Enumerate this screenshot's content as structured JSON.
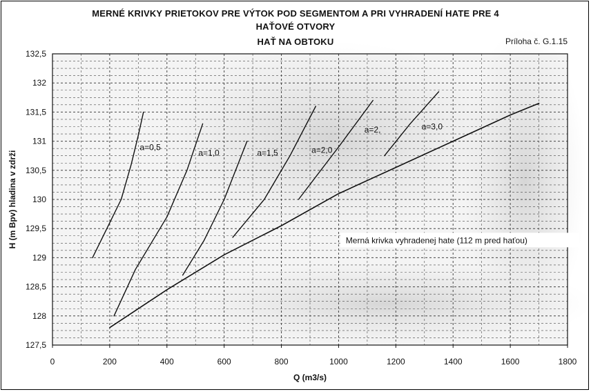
{
  "header": {
    "title": "MERNÉ KRIVKY PRIETOKOV PRE VÝTOK POD  SEGMENTOM A PRI VYHRADENÍ HATE PRE 4 HAŤOVÉ OTVORY",
    "subtitle": "HAŤ NA OBTOKU",
    "reference": "Príloha č. G.1.15"
  },
  "chart_data": {
    "type": "line",
    "title": "MERNÉ KRIVKY PRIETOKOV PRE VÝTOK POD  SEGMENTOM A PRI VYHRADENÍ HATE PRE 4 HAŤOVÉ OTVORY",
    "subtitle": "HAŤ NA OBTOKU",
    "xlabel": "Q (m3/s)",
    "ylabel": "H (m Bpv) hladina v zdrži",
    "xlim": [
      0,
      1800
    ],
    "ylim": [
      127.5,
      132.5
    ],
    "x_ticks": [
      "0",
      "200",
      "400",
      "600",
      "800",
      "1000",
      "1200",
      "1400",
      "1600",
      "1800"
    ],
    "y_ticks": [
      "127,5",
      "128",
      "128,5",
      "129",
      "129,5",
      "130",
      "130,5",
      "131",
      "131,5",
      "132",
      "132,5"
    ],
    "grid": true,
    "series": [
      {
        "name": "a=0,5",
        "label_at": [
          305,
          130.85
        ],
        "points": [
          [
            140,
            129.0
          ],
          [
            200,
            129.6
          ],
          [
            240,
            130.0
          ],
          [
            275,
            130.6
          ],
          [
            300,
            131.1
          ],
          [
            318,
            131.5
          ]
        ]
      },
      {
        "name": "a=1,0",
        "label_at": [
          510,
          130.75
        ],
        "points": [
          [
            215,
            128.0
          ],
          [
            290,
            128.8
          ],
          [
            400,
            129.7
          ],
          [
            470,
            130.5
          ],
          [
            525,
            131.3
          ]
        ]
      },
      {
        "name": "a=1,5",
        "label_at": [
          715,
          130.75
        ],
        "points": [
          [
            455,
            128.7
          ],
          [
            530,
            129.3
          ],
          [
            600,
            130.0
          ],
          [
            680,
            131.0
          ]
        ]
      },
      {
        "name": "a=2,0",
        "label_at": [
          905,
          130.8
        ],
        "points": [
          [
            630,
            129.35
          ],
          [
            740,
            130.0
          ],
          [
            830,
            130.75
          ],
          [
            920,
            131.6
          ]
        ]
      },
      {
        "name": "a=2,",
        "label_at": [
          1090,
          131.15
        ],
        "points": [
          [
            860,
            130.0
          ],
          [
            1000,
            130.9
          ],
          [
            1120,
            131.7
          ]
        ]
      },
      {
        "name": "a=3,0",
        "label_at": [
          1290,
          131.2
        ],
        "points": [
          [
            1160,
            130.75
          ],
          [
            1250,
            131.3
          ],
          [
            1350,
            131.85
          ]
        ]
      },
      {
        "name": "Merná krivka vyhradenej hate (112 m pred haťou)",
        "label_at": [
          1025,
          129.25
        ],
        "points": [
          [
            200,
            127.8
          ],
          [
            400,
            128.45
          ],
          [
            600,
            129.05
          ],
          [
            800,
            129.55
          ],
          [
            1000,
            130.1
          ],
          [
            1200,
            130.55
          ],
          [
            1400,
            131.0
          ],
          [
            1600,
            131.45
          ],
          [
            1700,
            131.65
          ]
        ]
      }
    ]
  }
}
